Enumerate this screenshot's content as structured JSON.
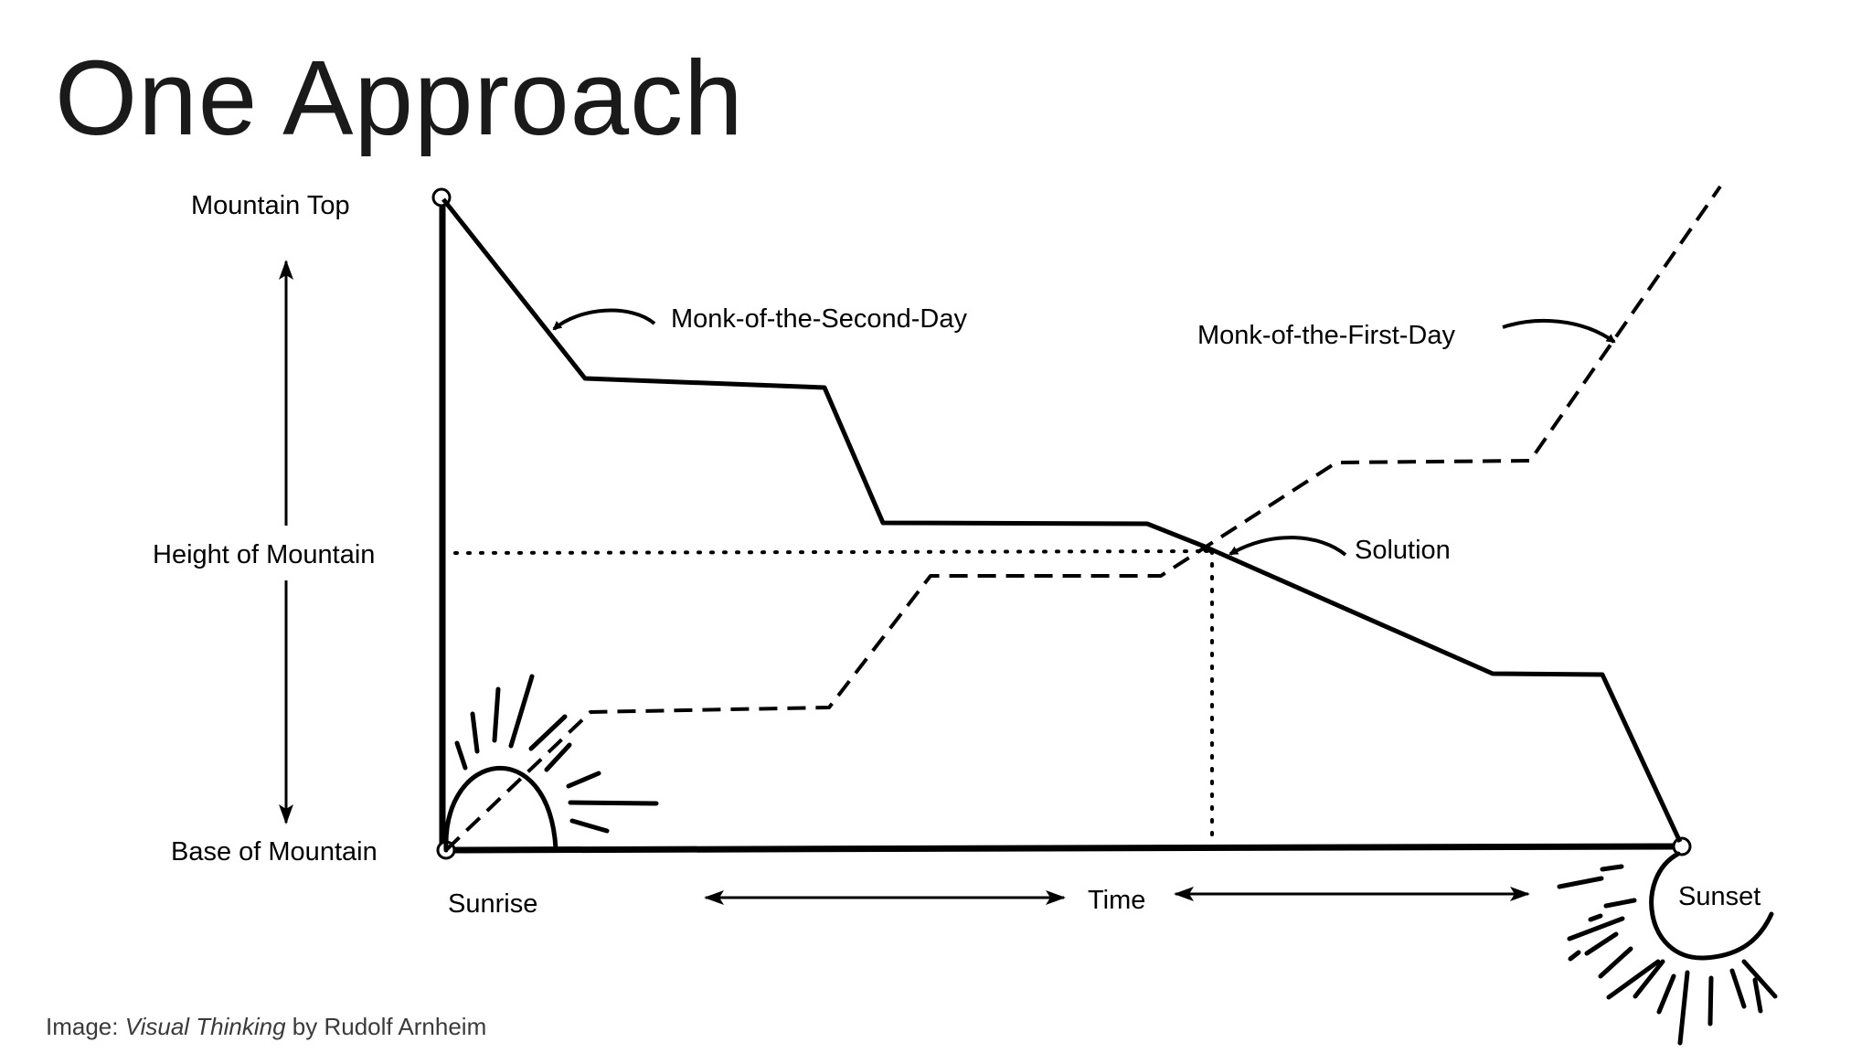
{
  "slide": {
    "title": "One Approach",
    "caption": {
      "prefix": "Image: ",
      "book": "Visual Thinking",
      "suffix": " by Rudolf Arnheim"
    }
  },
  "diagram": {
    "labels": {
      "mountain_top": "Mountain Top",
      "height_of_mountain": "Height of Mountain",
      "base_of_mountain": "Base of Mountain",
      "sunrise": "Sunrise",
      "time": "Time",
      "sunset": "Sunset",
      "monk_second_day": "Monk-of-the-Second-Day",
      "monk_first_day": "Monk-of-the-First-Day",
      "solution": "Solution"
    },
    "line_styles": {
      "monk_second_day": "solid",
      "monk_first_day": "dashed",
      "solution_guides": "dotted"
    },
    "colors": {
      "ink": "#000000",
      "background": "#ffffff"
    }
  }
}
